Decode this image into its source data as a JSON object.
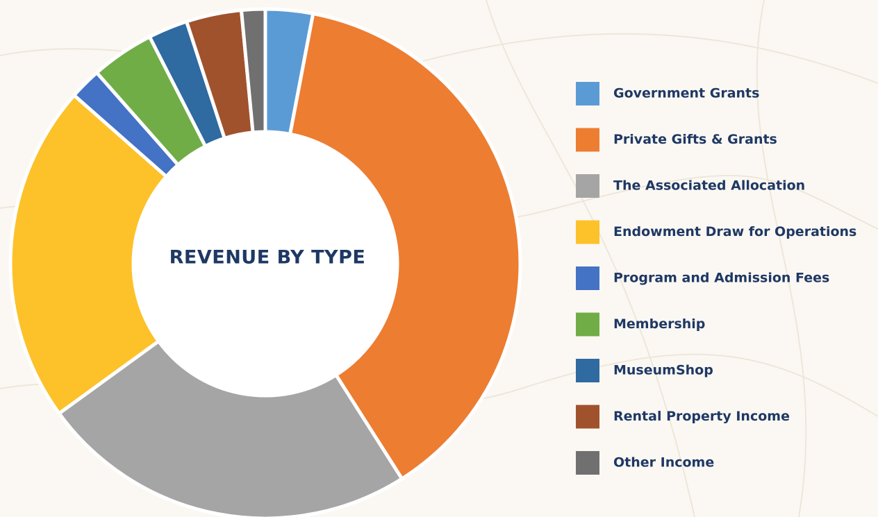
{
  "chart_data": {
    "type": "pie",
    "title": "REVENUE BY TYPE",
    "categories": [
      "Government Grants",
      "Private Gifts & Grants",
      "The Associated Allocation",
      "Endowment Draw for Operations",
      "Program and Admission Fees",
      "Membership",
      "MuseumShop",
      "Rental Property Income",
      "Other Income"
    ],
    "values": [
      3,
      38,
      24,
      21.5,
      2,
      4,
      2.5,
      3.5,
      1.5
    ],
    "colors": [
      "#5b9bd5",
      "#ed7d31",
      "#a5a5a5",
      "#fdc12a",
      "#4472c4",
      "#70ad47",
      "#2f6aa0",
      "#a0522d",
      "#707070"
    ],
    "legend": "right"
  }
}
